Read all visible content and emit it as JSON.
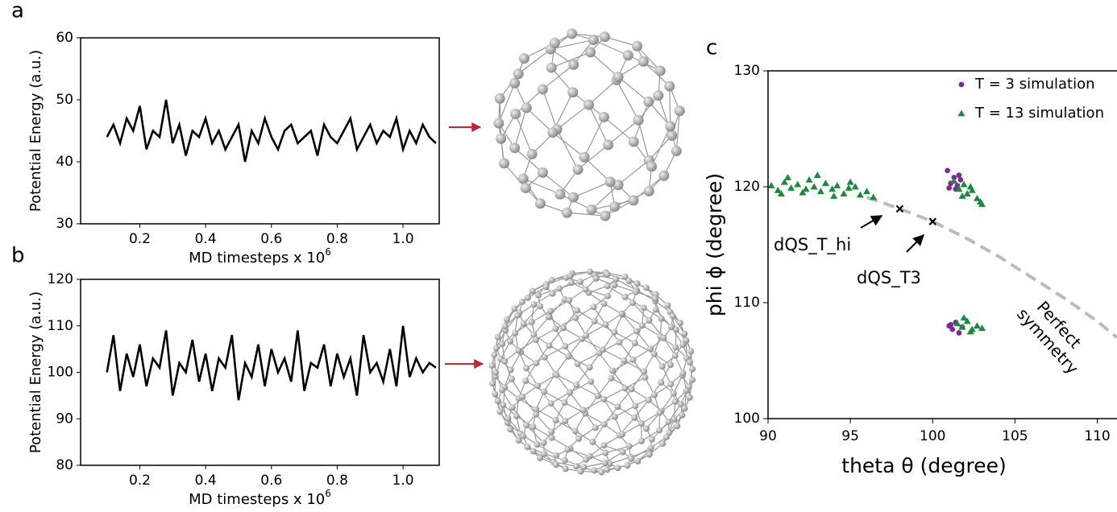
{
  "chart_data": [
    {
      "type": "line",
      "panel": "a",
      "ylabel": "Potential Energy (a.u.)",
      "xlabel": "MD timesteps x 10",
      "xlabel_exponent": "6",
      "xlim": [
        0.02,
        1.11
      ],
      "ylim": [
        30,
        60
      ],
      "yticks": [
        30,
        40,
        50,
        60
      ],
      "xticks": [
        0.2,
        0.4,
        0.6,
        0.8,
        {
          "value": 1.0,
          "label": "1.0"
        }
      ],
      "x": [
        0.1,
        0.12,
        0.14,
        0.16,
        0.18,
        0.2,
        0.22,
        0.24,
        0.26,
        0.28,
        0.3,
        0.32,
        0.34,
        0.36,
        0.38,
        0.4,
        0.42,
        0.44,
        0.46,
        0.48,
        0.5,
        0.52,
        0.54,
        0.56,
        0.58,
        0.6,
        0.62,
        0.64,
        0.66,
        0.68,
        0.7,
        0.72,
        0.74,
        0.76,
        0.78,
        0.8,
        0.82,
        0.84,
        0.86,
        0.88,
        0.9,
        0.92,
        0.94,
        0.96,
        0.98,
        1.0,
        1.02,
        1.04,
        1.06,
        1.08,
        1.1
      ],
      "series": [
        {
          "color": "#000000",
          "values": [
            44,
            46,
            43,
            47,
            45,
            49,
            42,
            45,
            44,
            50,
            43,
            46,
            41,
            45,
            44,
            47,
            43,
            45,
            42,
            44,
            46,
            40,
            45,
            43,
            47,
            44,
            42,
            45,
            46,
            43,
            44,
            45,
            41,
            46,
            44,
            43,
            45,
            47,
            42,
            44,
            46,
            43,
            45,
            44,
            47,
            42,
            45,
            43,
            46,
            44,
            43
          ]
        }
      ]
    },
    {
      "type": "line",
      "panel": "b",
      "ylabel": "Potential Energy (a.u.)",
      "xlabel": "MD timesteps x 10",
      "xlabel_exponent": "6",
      "xlim": [
        0.02,
        1.11
      ],
      "ylim": [
        80,
        120
      ],
      "yticks": [
        80,
        90,
        100,
        110,
        120
      ],
      "xticks": [
        0.2,
        0.4,
        0.6,
        0.8,
        {
          "value": 1.0,
          "label": "1.0"
        }
      ],
      "x": [
        0.1,
        0.12,
        0.14,
        0.16,
        0.18,
        0.2,
        0.22,
        0.24,
        0.26,
        0.28,
        0.3,
        0.32,
        0.34,
        0.36,
        0.38,
        0.4,
        0.42,
        0.44,
        0.46,
        0.48,
        0.5,
        0.52,
        0.54,
        0.56,
        0.58,
        0.6,
        0.62,
        0.64,
        0.66,
        0.68,
        0.7,
        0.72,
        0.74,
        0.76,
        0.78,
        0.8,
        0.82,
        0.84,
        0.86,
        0.88,
        0.9,
        0.92,
        0.94,
        0.96,
        0.98,
        1.0,
        1.02,
        1.04,
        1.06,
        1.08,
        1.1
      ],
      "series": [
        {
          "color": "#000000",
          "values": [
            100,
            108,
            96,
            104,
            99,
            106,
            97,
            103,
            101,
            109,
            95,
            102,
            100,
            107,
            98,
            104,
            96,
            103,
            101,
            108,
            94,
            102,
            99,
            106,
            97,
            105,
            100,
            103,
            98,
            109,
            96,
            102,
            101,
            106,
            97,
            104,
            99,
            103,
            95,
            108,
            100,
            102,
            98,
            105,
            97,
            110,
            99,
            103,
            100,
            102,
            101
          ]
        }
      ]
    },
    {
      "type": "scatter",
      "panel": "c",
      "xlabel": "theta θ (degree)",
      "ylabel": "phi ϕ (degree)",
      "xlim": [
        90,
        111.2
      ],
      "ylim": [
        100,
        130
      ],
      "xticks": [
        90,
        95,
        100,
        105,
        110
      ],
      "yticks": [
        100,
        110,
        120,
        130
      ],
      "series": [
        {
          "name": "T = 3 simulation",
          "color": "#7b2d8e",
          "marker": "circle",
          "x": [
            100.9,
            101.1,
            101.3,
            101.5,
            101.7,
            101.4,
            101.0,
            101.6,
            101.0,
            101.2,
            101.4,
            101.6,
            101.1,
            101.8
          ],
          "values": [
            121.4,
            120.3,
            120.8,
            120.1,
            120.6,
            119.8,
            119.9,
            121.0,
            108.0,
            107.7,
            108.3,
            107.4,
            108.1,
            107.9
          ]
        },
        {
          "name": "T = 13 simulation",
          "color": "#1a8a3c",
          "marker": "triangle",
          "x": [
            90.2,
            90.6,
            91.0,
            91.4,
            91.8,
            92.1,
            92.5,
            92.8,
            93.2,
            93.5,
            93.9,
            94.2,
            94.6,
            94.9,
            95.3,
            95.6,
            96.0,
            96.4,
            91.2,
            93.0,
            94.0,
            95.0,
            92.3,
            90.8,
            101.3,
            101.6,
            101.9,
            102.1,
            102.4,
            102.7,
            102.9,
            101.8,
            102.3,
            103.0,
            101.5,
            101.8,
            102.1,
            102.4,
            102.7,
            103.0,
            101.9,
            102.3
          ],
          "values": [
            120.1,
            119.7,
            120.4,
            119.9,
            120.2,
            119.5,
            120.6,
            120.0,
            119.6,
            120.3,
            119.8,
            120.1,
            119.4,
            119.9,
            120.0,
            119.3,
            119.6,
            119.1,
            120.8,
            121.0,
            119.2,
            120.4,
            119.8,
            119.4,
            120.5,
            119.8,
            120.2,
            119.4,
            119.7,
            119.0,
            118.7,
            119.2,
            120.0,
            118.5,
            108.2,
            107.9,
            108.4,
            107.7,
            108.0,
            107.8,
            108.7,
            107.5
          ]
        }
      ],
      "reference_curve": {
        "label": [
          "Perfect",
          "symmetry"
        ],
        "color": "#bbbbbb",
        "x": [
          96,
          98,
          100,
          102,
          104,
          106,
          108,
          110,
          111.2
        ],
        "values": [
          119.1,
          118.1,
          117.0,
          115.6,
          114.0,
          112.2,
          110.4,
          108.4,
          107.0
        ]
      },
      "points": [
        {
          "label": "dQS_T_hi",
          "x": 98,
          "y": 118.1
        },
        {
          "label": "dQS_T3",
          "x": 100,
          "y": 117.0
        }
      ]
    }
  ]
}
